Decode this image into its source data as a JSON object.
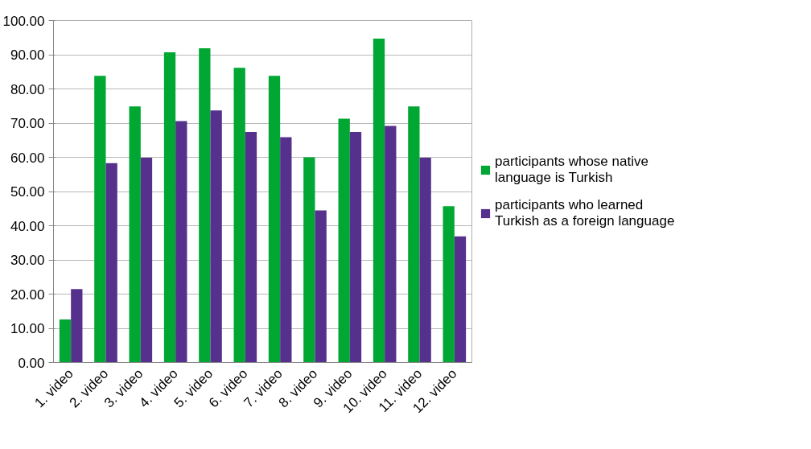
{
  "chart_data": {
    "type": "bar",
    "categories": [
      "1. video",
      "2. video",
      "3. video",
      "4. video",
      "5. video",
      "6. video",
      "7. video",
      "8. video",
      "9. video",
      "10. video",
      "11. video",
      "12. video"
    ],
    "series": [
      {
        "name": "participants whose native language is Turkish",
        "color": "#00a732",
        "values": [
          12.6,
          83.8,
          74.9,
          90.7,
          91.9,
          86.2,
          83.8,
          60.0,
          71.3,
          94.7,
          74.9,
          45.7
        ]
      },
      {
        "name": "participants who learned Turkish as a foreign language",
        "color": "#55308d",
        "values": [
          21.5,
          58.3,
          59.9,
          70.6,
          73.7,
          67.4,
          65.9,
          44.5,
          67.4,
          69.2,
          59.9,
          36.9
        ]
      }
    ],
    "ylim": [
      0,
      100
    ],
    "yticks": [
      {
        "value": 0,
        "label": "0.00"
      },
      {
        "value": 10,
        "label": "10.00"
      },
      {
        "value": 20,
        "label": "20.00"
      },
      {
        "value": 30,
        "label": "30.00"
      },
      {
        "value": 40,
        "label": "40.00"
      },
      {
        "value": 50,
        "label": "50.00"
      },
      {
        "value": 60,
        "label": "60.00"
      },
      {
        "value": 70,
        "label": "70.00"
      },
      {
        "value": 80,
        "label": "80.00"
      },
      {
        "value": 90,
        "label": "90.00"
      },
      {
        "value": 100,
        "label": "100.00"
      }
    ],
    "grid": "y",
    "legend": "right"
  }
}
